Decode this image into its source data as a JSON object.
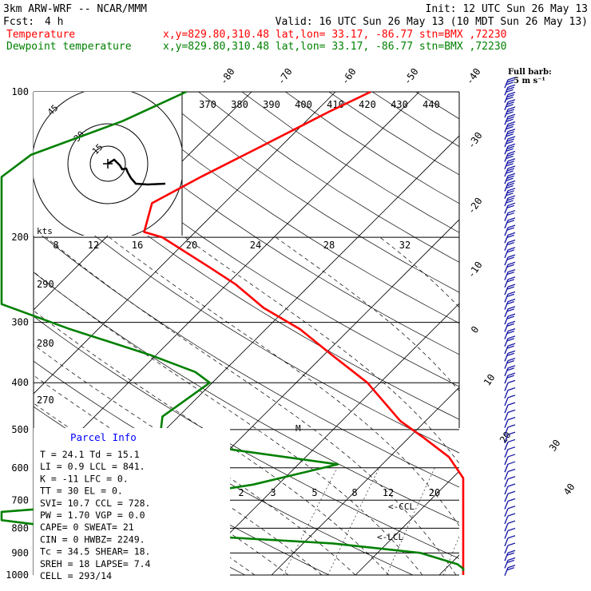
{
  "header": {
    "model": "3km ARW-WRF -- NCAR/MMM",
    "init": "Init: 12 UTC Sun 26 May 13",
    "fcst_label": "Fcst:",
    "fcst_value": "4 h",
    "valid": "Valid: 16 UTC Sun 26 May 13 (10 MDT Sun 26 May 13)",
    "temp_label": "Temperature",
    "temp_loc": "x,y=829.80,310.48   lat,lon= 33.17, -86.77   stn=BMX ,72230",
    "dew_label": "Dewpoint temperature",
    "dew_loc": "x,y=829.80,310.48   lat,lon= 33.17, -86.77   stn=BMX ,72230",
    "temp_color": "#ff0000",
    "dew_color": "#008000"
  },
  "barb_legend": {
    "line1": "Full barb:",
    "line2": "5 m s⁻¹"
  },
  "hodograph": {
    "units_label": "kts",
    "ring_labels": [
      "45",
      "30",
      "15"
    ]
  },
  "panel": {
    "title": "Parcel Info",
    "rows": [
      "T  =    24.1  Td =  15.1",
      "LI =     0.9  LCL =  841.",
      "K  =     -11  LFC =    0.",
      "TT =      30  EL  =    0.",
      "SVI=    10.7  CCL =  728.",
      "PW =    1.70  VGP =   0.0",
      "CAPE=      0  SWEAT=   21",
      "CIN =      0  HWBZ= 2249.",
      "Tc  =   34.5  SHEAR=   18.",
      "SREH =    18  LAPSE=  7.4",
      "CELL = 293/14"
    ]
  },
  "annotations": {
    "ccl": "<-CCL",
    "lcl": "<-LCL",
    "m": "M"
  },
  "icons": [
    "wind-barb-icon",
    "hodograph-center-icon"
  ],
  "chart_data": {
    "type": "line",
    "y_scale": "log",
    "ylim": [
      1000,
      100
    ],
    "yticks": [
      100,
      200,
      300,
      400,
      500,
      600,
      700,
      800,
      900,
      1000
    ],
    "isotherm_labels": [
      "-80",
      "-70",
      "-60",
      "-50",
      "-40",
      "-30",
      "-20",
      "-10",
      "0",
      "10",
      "20",
      "30",
      "40"
    ],
    "theta_labels": [
      "370",
      "380",
      "390",
      "400",
      "410",
      "420",
      "430",
      "440"
    ],
    "theta_e_labels": [
      "290",
      "280",
      "270"
    ],
    "mixing_labels": [
      "2",
      "3",
      "5",
      "8",
      "12",
      "20"
    ],
    "hodo_speed_labels": [
      "8",
      "12",
      "16",
      "20",
      "24",
      "28",
      "32"
    ],
    "series": [
      {
        "name": "Temperature",
        "points": [
          [
            100,
            -55.8
          ],
          [
            110,
            -58.4
          ],
          [
            130,
            -62.4
          ],
          [
            150,
            -65.9
          ],
          [
            170,
            -68.6
          ],
          [
            195,
            -66.1
          ],
          [
            200,
            -63.3
          ],
          [
            230,
            -54.3
          ],
          [
            250,
            -49
          ],
          [
            280,
            -42.8
          ],
          [
            310,
            -35.9
          ],
          [
            350,
            -29.1
          ],
          [
            400,
            -21.5
          ],
          [
            480,
            -13
          ],
          [
            520,
            -8.2
          ],
          [
            570,
            -2.9
          ],
          [
            630,
            3.5
          ],
          [
            700,
            9
          ],
          [
            750,
            13.3
          ],
          [
            800,
            16.1
          ],
          [
            850,
            17.5
          ],
          [
            880,
            19.1
          ],
          [
            930,
            20.3
          ],
          [
            980,
            23.2
          ],
          [
            1000,
            24.1
          ]
        ]
      },
      {
        "name": "Dewpoint temperature",
        "points": [
          [
            100,
            -77.8
          ],
          [
            115,
            -81.9
          ],
          [
            135,
            -88.8
          ],
          [
            150,
            -94
          ],
          [
            165,
            -97.8
          ],
          [
            185,
            -97
          ],
          [
            200,
            -90.7
          ],
          [
            240,
            -80.6
          ],
          [
            275,
            -77.8
          ],
          [
            310,
            -63.3
          ],
          [
            350,
            -50.8
          ],
          [
            380,
            -43.3
          ],
          [
            400,
            -40.3
          ],
          [
            470,
            -41.9
          ],
          [
            510,
            -40.1
          ],
          [
            550,
            -29.7
          ],
          [
            590,
            -15.3
          ],
          [
            650,
            -23
          ],
          [
            700,
            -33
          ],
          [
            740,
            -59
          ],
          [
            770,
            -90
          ],
          [
            800,
            -40
          ],
          [
            860,
            -6.5
          ],
          [
            900,
            5.1
          ],
          [
            950,
            10.9
          ],
          [
            970,
            15.4
          ],
          [
            980,
            15.1
          ]
        ]
      }
    ],
    "wind_barbs_mps": [
      15,
      15,
      15,
      15,
      15,
      15,
      15,
      15,
      15,
      15,
      15,
      15,
      15,
      15,
      15,
      15,
      15,
      10,
      10,
      10,
      10,
      10,
      10,
      10,
      10,
      10,
      10,
      10,
      10,
      10,
      10,
      10,
      10,
      10,
      10,
      10,
      10,
      10,
      10,
      10,
      10,
      5,
      5,
      5,
      5,
      5,
      5,
      5,
      5,
      5,
      5,
      5,
      5,
      5,
      5,
      5,
      5,
      5,
      5,
      5,
      5,
      5,
      5,
      5,
      10,
      10,
      10
    ]
  }
}
